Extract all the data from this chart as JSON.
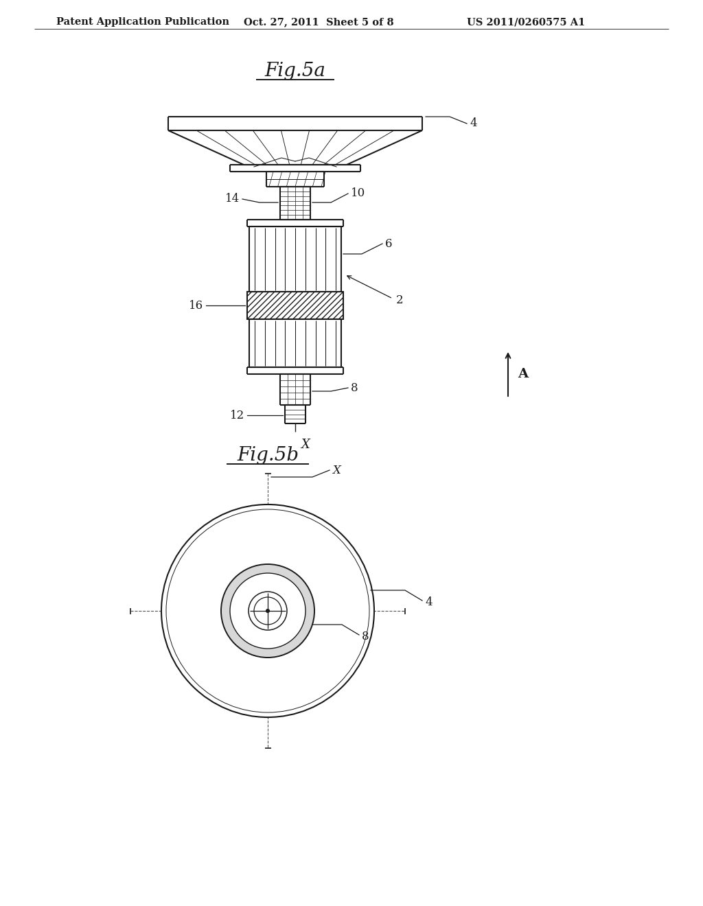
{
  "bg_color": "#ffffff",
  "line_color": "#1a1a1a",
  "title_top": "Patent Application Publication",
  "title_date": "Oct. 27, 2011  Sheet 5 of 8",
  "title_patent": "US 2011/0260575 A1",
  "fig5a_title": "Fig.5a",
  "fig5b_title": "Fig.5b"
}
